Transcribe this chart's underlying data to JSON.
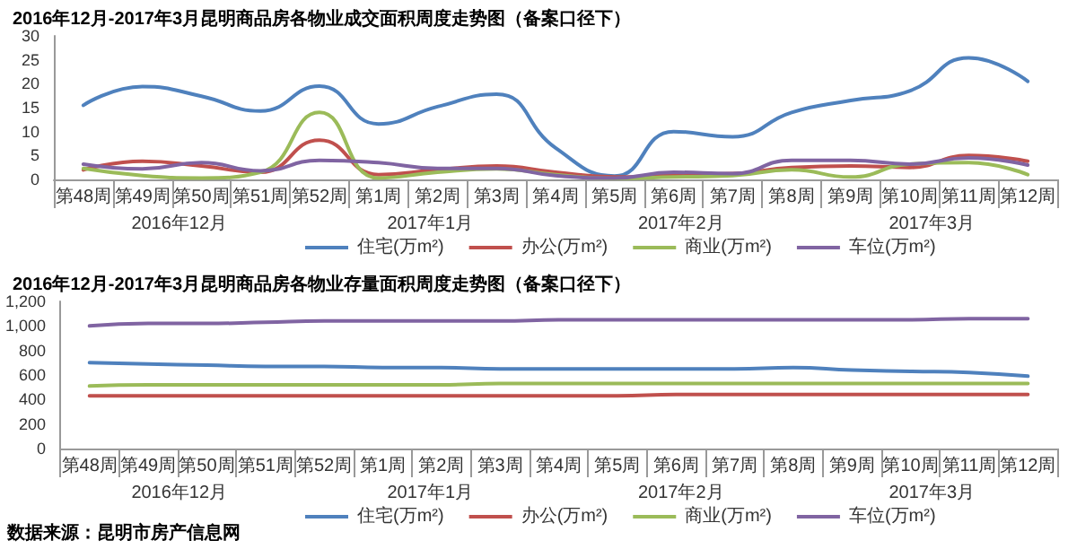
{
  "chart_data": [
    {
      "type": "line",
      "title": "2016年12月-2017年3月昆明商品房各物业成交面积周度走势图（备案口径下）",
      "categories": [
        "第48周",
        "第49周",
        "第50周",
        "第51周",
        "第52周",
        "第1周",
        "第2周",
        "第3周",
        "第4周",
        "第5周",
        "第6周",
        "第7周",
        "第8周",
        "第9周",
        "第10周",
        "第11周",
        "第12周"
      ],
      "series": [
        {
          "name": "住宅(万m²)",
          "color": "#4f81bd",
          "values": [
            15.5,
            19.4,
            17.4,
            14.3,
            19.5,
            11.6,
            15.2,
            17.8,
            6.6,
            0.7,
            10,
            8.9,
            14,
            16.5,
            18.5,
            25.4,
            20.5
          ]
        },
        {
          "name": "办公(万m²)",
          "color": "#c0504d",
          "values": [
            2,
            3.8,
            2.8,
            1.5,
            8.2,
            1,
            2,
            2.8,
            1.5,
            0.5,
            1,
            1.2,
            2.5,
            2.8,
            2.5,
            5,
            3.8
          ]
        },
        {
          "name": "商业(万m²)",
          "color": "#9bbb59",
          "values": [
            2.3,
            0.8,
            0.3,
            1.5,
            14,
            0.3,
            1.5,
            2.2,
            1,
            0.2,
            0.5,
            0.8,
            2,
            0.5,
            3.2,
            3.5,
            1
          ]
        },
        {
          "name": "车位(万m²)",
          "color": "#8064a2",
          "values": [
            3.2,
            2.2,
            3.5,
            1.8,
            4,
            3.5,
            2.3,
            2.3,
            0.8,
            0.3,
            1.5,
            1.2,
            4,
            4,
            3.2,
            4.5,
            3
          ]
        }
      ],
      "ylim": [
        0,
        30
      ],
      "yticks": [
        0,
        5,
        10,
        15,
        20,
        25,
        30
      ],
      "grid": false,
      "legend": "bottom",
      "marker": "none",
      "line_style": "solid",
      "annotations": [
        "2016年12月",
        "2017年1月",
        "2017年2月",
        "2017年3月"
      ]
    },
    {
      "type": "line",
      "title": "2016年12月-2017年3月昆明商品房各物业存量面积周度走势图（备案口径下）",
      "categories": [
        "第48周",
        "第49周",
        "第50周",
        "第51周",
        "第52周",
        "第1周",
        "第2周",
        "第3周",
        "第4周",
        "第5周",
        "第6周",
        "第7周",
        "第8周",
        "第9周",
        "第10周",
        "第11周",
        "第12周"
      ],
      "series": [
        {
          "name": "住宅(万m²)",
          "color": "#4f81bd",
          "values": [
            700,
            690,
            680,
            670,
            670,
            660,
            660,
            650,
            650,
            650,
            650,
            650,
            660,
            640,
            630,
            620,
            590
          ]
        },
        {
          "name": "办公(万m²)",
          "color": "#c0504d",
          "values": [
            430,
            430,
            430,
            430,
            430,
            430,
            430,
            430,
            430,
            430,
            440,
            440,
            440,
            440,
            440,
            440,
            440
          ]
        },
        {
          "name": "商业(万m²)",
          "color": "#9bbb59",
          "values": [
            510,
            520,
            520,
            520,
            520,
            520,
            520,
            530,
            530,
            530,
            530,
            530,
            530,
            530,
            530,
            530,
            530
          ]
        },
        {
          "name": "车位(万m²)",
          "color": "#8064a2",
          "values": [
            1000,
            1020,
            1020,
            1030,
            1040,
            1040,
            1040,
            1040,
            1050,
            1050,
            1050,
            1050,
            1050,
            1050,
            1050,
            1060,
            1060
          ]
        }
      ],
      "ylim": [
        0,
        1200
      ],
      "yticks": [
        0,
        200,
        400,
        600,
        800,
        {
          "value": 1000,
          "label": "1,000"
        },
        {
          "value": 1200,
          "label": "1,200"
        }
      ],
      "grid": false,
      "legend": "bottom",
      "marker": "none",
      "line_style": "solid",
      "annotations": [
        "2016年12月",
        "2017年1月",
        "2017年2月",
        "2017年3月"
      ]
    },
    {
      "type": "other",
      "annotations": [
        "数据来源：昆明市房产信息网"
      ]
    }
  ]
}
